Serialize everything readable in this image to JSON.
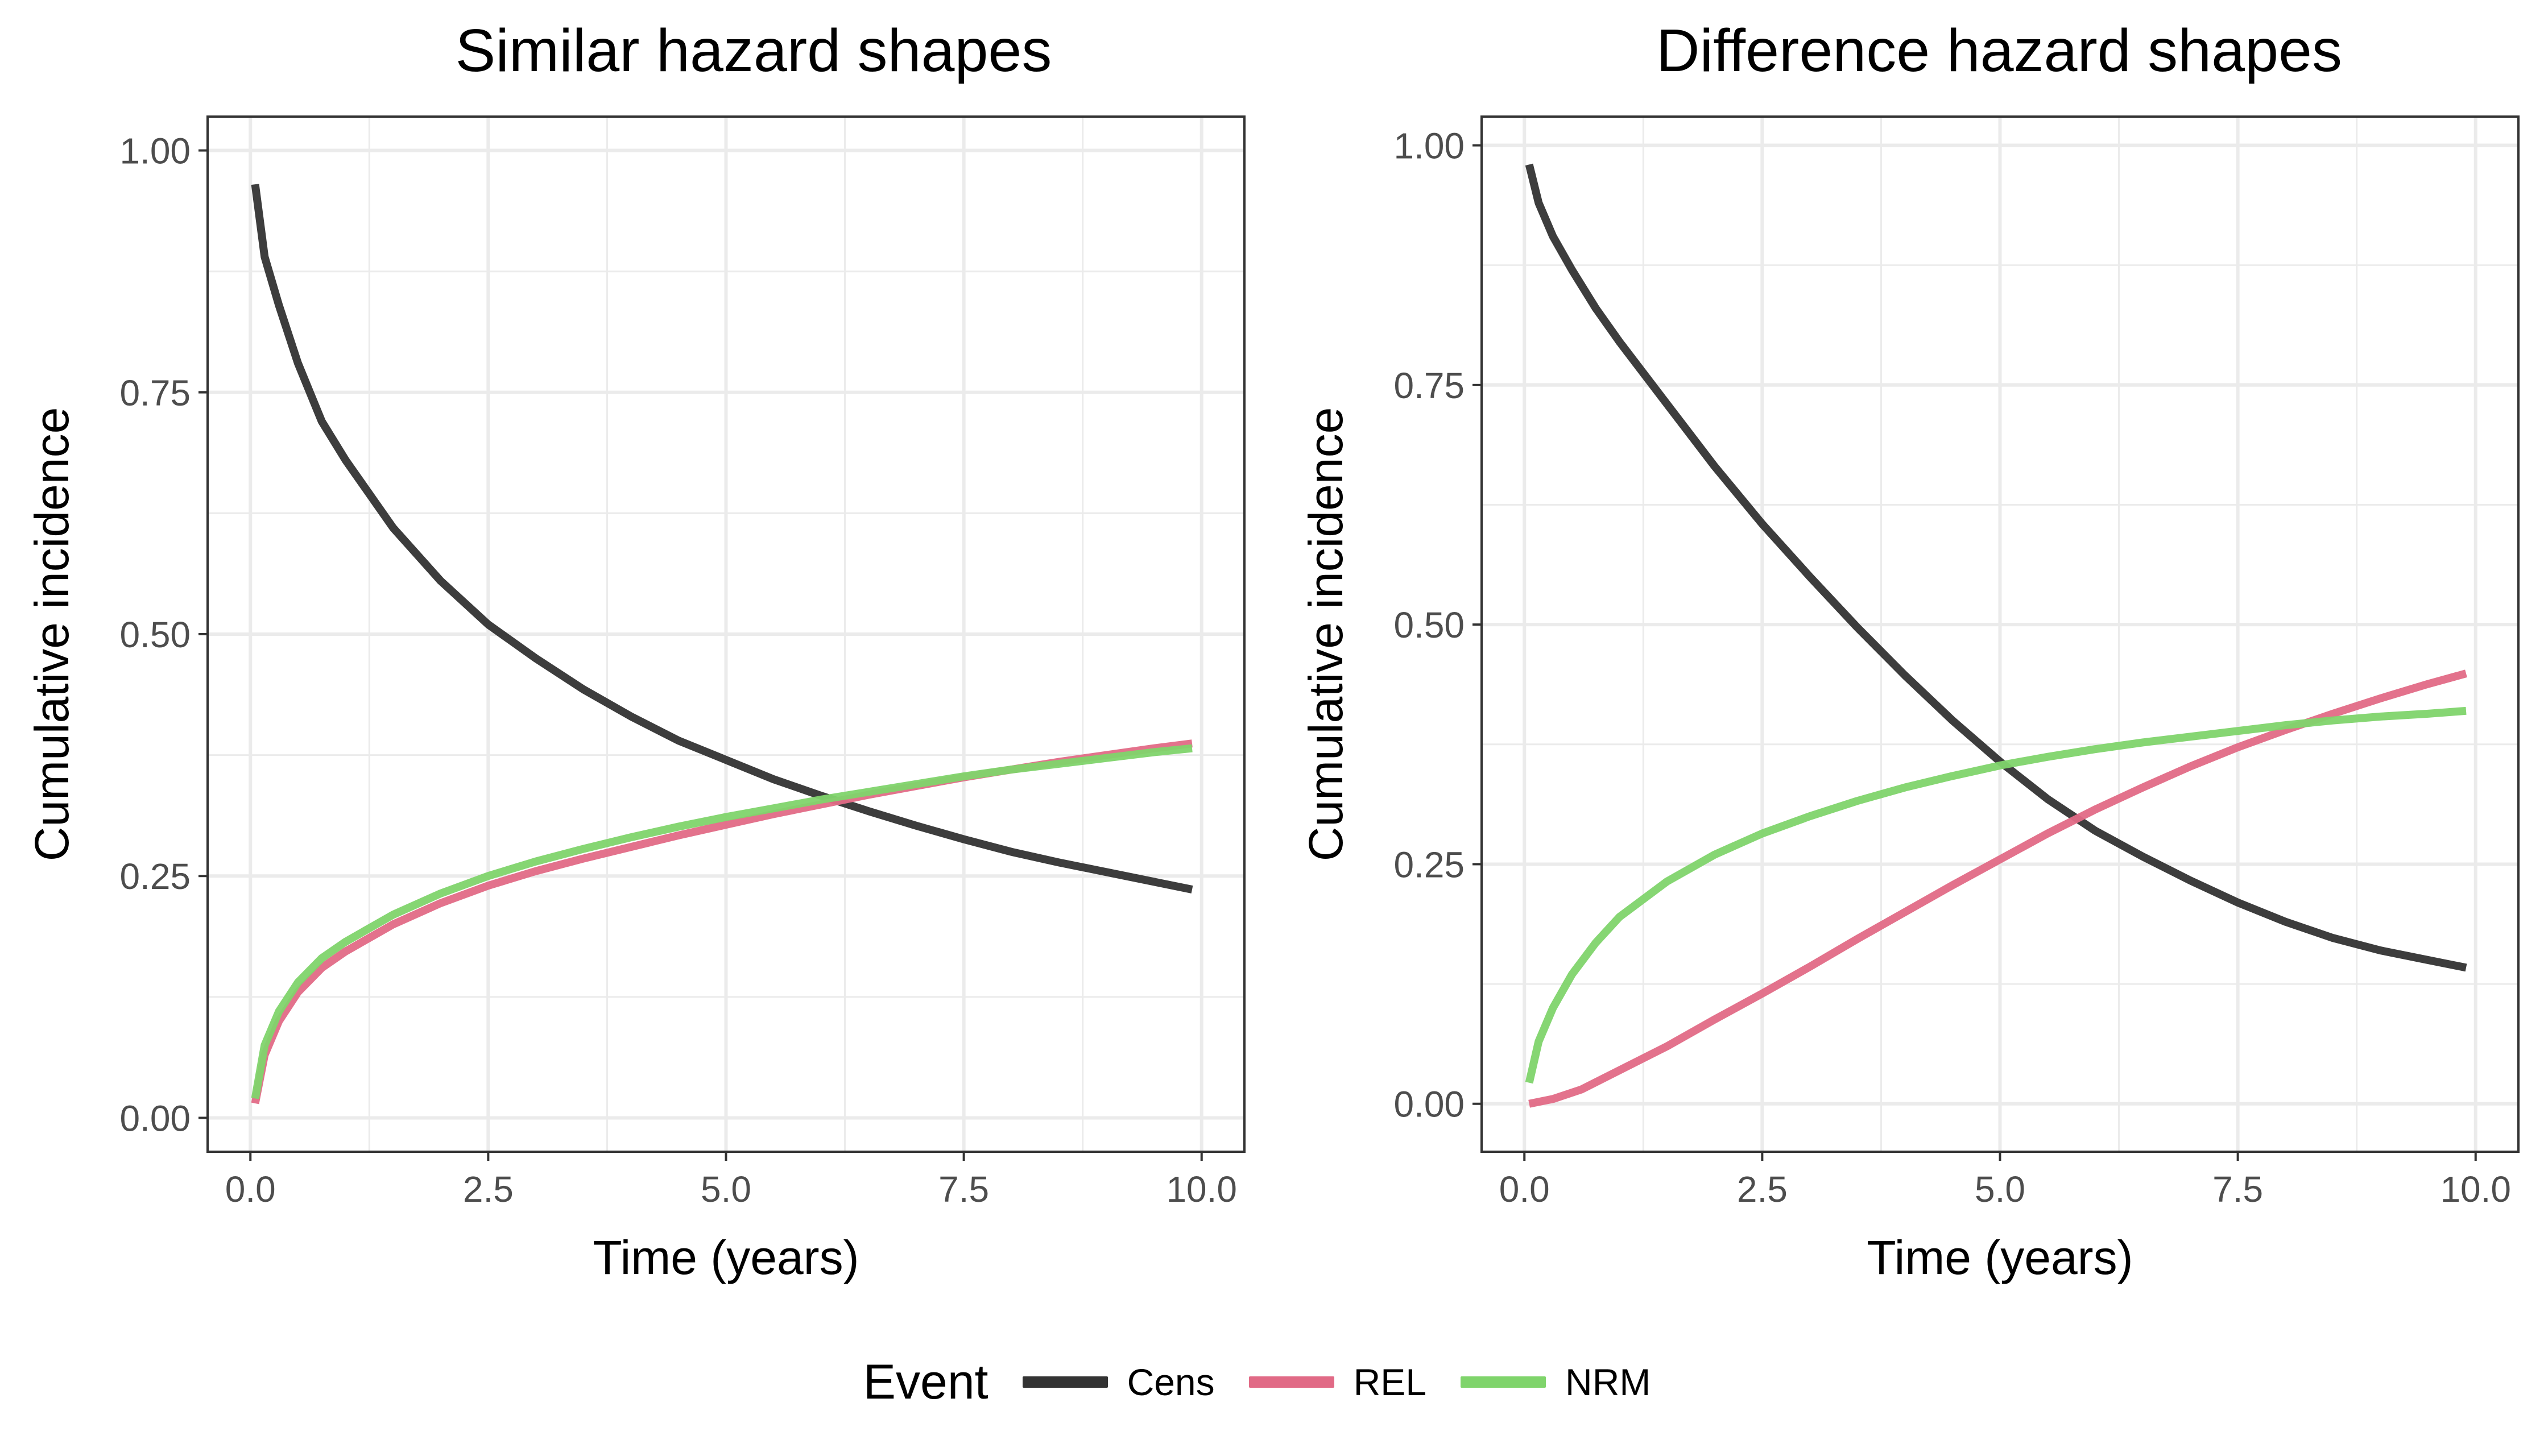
{
  "legend": {
    "title": "Event",
    "position": "bottom",
    "entries": [
      {
        "key": "Cens",
        "label": "Cens",
        "color": "#333333"
      },
      {
        "key": "REL",
        "label": "REL",
        "color": "#E16A86"
      },
      {
        "key": "NRM",
        "label": "NRM",
        "color": "#7FD46B"
      }
    ]
  },
  "chart_data": [
    {
      "type": "line",
      "title": "Similar hazard shapes",
      "xlabel": "Time (years)",
      "ylabel": "Cumulative incidence",
      "xlim": [
        -0.45,
        10.45
      ],
      "ylim": [
        -0.035,
        1.035
      ],
      "xticks": [
        "0.0",
        "2.5",
        "5.0",
        "7.5",
        "10.0"
      ],
      "yticks": [
        "0.00",
        "0.25",
        "0.50",
        "0.75",
        "1.00"
      ],
      "grid": true,
      "series": [
        {
          "name": "Cens",
          "color": "#333333",
          "x": [
            0.05,
            0.15,
            0.3,
            0.5,
            0.75,
            1.0,
            1.5,
            2.0,
            2.5,
            3.0,
            3.5,
            4.0,
            4.5,
            5.0,
            5.5,
            6.0,
            6.5,
            7.0,
            7.5,
            8.0,
            8.5,
            9.0,
            9.5,
            9.9
          ],
          "y": [
            0.965,
            0.89,
            0.84,
            0.78,
            0.72,
            0.68,
            0.61,
            0.555,
            0.51,
            0.475,
            0.443,
            0.415,
            0.39,
            0.37,
            0.35,
            0.333,
            0.317,
            0.302,
            0.288,
            0.275,
            0.264,
            0.254,
            0.244,
            0.236
          ]
        },
        {
          "name": "REL",
          "color": "#E16A86",
          "x": [
            0.05,
            0.15,
            0.3,
            0.5,
            0.75,
            1.0,
            1.5,
            2.0,
            2.5,
            3.0,
            3.5,
            4.0,
            4.5,
            5.0,
            5.5,
            6.0,
            6.5,
            7.0,
            7.5,
            8.0,
            8.5,
            9.0,
            9.5,
            9.9
          ],
          "y": [
            0.015,
            0.065,
            0.1,
            0.13,
            0.155,
            0.172,
            0.2,
            0.222,
            0.24,
            0.255,
            0.268,
            0.28,
            0.292,
            0.303,
            0.314,
            0.324,
            0.334,
            0.343,
            0.352,
            0.36,
            0.368,
            0.375,
            0.382,
            0.387
          ]
        },
        {
          "name": "NRM",
          "color": "#7FD46B",
          "x": [
            0.05,
            0.15,
            0.3,
            0.5,
            0.75,
            1.0,
            1.5,
            2.0,
            2.5,
            3.0,
            3.5,
            4.0,
            4.5,
            5.0,
            5.5,
            6.0,
            6.5,
            7.0,
            7.5,
            8.0,
            8.5,
            9.0,
            9.5,
            9.9
          ],
          "y": [
            0.02,
            0.075,
            0.11,
            0.14,
            0.165,
            0.182,
            0.21,
            0.232,
            0.25,
            0.265,
            0.278,
            0.29,
            0.301,
            0.311,
            0.32,
            0.329,
            0.337,
            0.345,
            0.353,
            0.36,
            0.366,
            0.372,
            0.378,
            0.382
          ]
        }
      ]
    },
    {
      "type": "line",
      "title": "Difference hazard shapes",
      "xlabel": "Time (years)",
      "ylabel": "Cumulative incidence",
      "xlim": [
        -0.45,
        10.45
      ],
      "ylim": [
        -0.05,
        1.03
      ],
      "xticks": [
        "0.0",
        "2.5",
        "5.0",
        "7.5",
        "10.0"
      ],
      "yticks": [
        "0.00",
        "0.25",
        "0.50",
        "0.75",
        "1.00"
      ],
      "grid": true,
      "series": [
        {
          "name": "Cens",
          "color": "#333333",
          "x": [
            0.05,
            0.15,
            0.3,
            0.5,
            0.75,
            1.0,
            1.5,
            2.0,
            2.5,
            3.0,
            3.5,
            4.0,
            4.5,
            5.0,
            5.5,
            6.0,
            6.5,
            7.0,
            7.5,
            8.0,
            8.5,
            9.0,
            9.5,
            9.9
          ],
          "y": [
            0.98,
            0.94,
            0.905,
            0.87,
            0.83,
            0.795,
            0.73,
            0.665,
            0.605,
            0.55,
            0.497,
            0.447,
            0.4,
            0.357,
            0.318,
            0.285,
            0.258,
            0.233,
            0.21,
            0.19,
            0.173,
            0.16,
            0.15,
            0.142
          ]
        },
        {
          "name": "REL",
          "color": "#E16A86",
          "x": [
            0.05,
            0.3,
            0.6,
            1.0,
            1.5,
            2.0,
            2.5,
            3.0,
            3.5,
            4.0,
            4.5,
            5.0,
            5.5,
            6.0,
            6.5,
            7.0,
            7.5,
            8.0,
            8.5,
            9.0,
            9.5,
            9.9
          ],
          "y": [
            0.0,
            0.005,
            0.015,
            0.035,
            0.06,
            0.088,
            0.115,
            0.143,
            0.172,
            0.2,
            0.228,
            0.255,
            0.282,
            0.307,
            0.33,
            0.352,
            0.372,
            0.39,
            0.407,
            0.423,
            0.438,
            0.449
          ]
        },
        {
          "name": "NRM",
          "color": "#7FD46B",
          "x": [
            0.05,
            0.15,
            0.3,
            0.5,
            0.75,
            1.0,
            1.5,
            2.0,
            2.5,
            3.0,
            3.5,
            4.0,
            4.5,
            5.0,
            5.5,
            6.0,
            6.5,
            7.0,
            7.5,
            8.0,
            8.5,
            9.0,
            9.5,
            9.9
          ],
          "y": [
            0.022,
            0.065,
            0.1,
            0.135,
            0.168,
            0.195,
            0.232,
            0.26,
            0.282,
            0.3,
            0.316,
            0.33,
            0.342,
            0.353,
            0.362,
            0.37,
            0.377,
            0.383,
            0.389,
            0.395,
            0.4,
            0.404,
            0.407,
            0.41
          ]
        }
      ]
    }
  ]
}
